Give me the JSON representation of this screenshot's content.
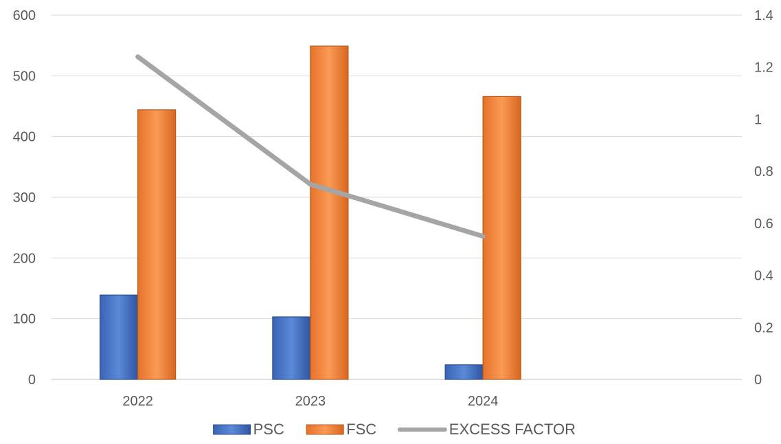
{
  "chart_data": {
    "type": "bar",
    "categories": [
      "2022",
      "2023",
      "2024"
    ],
    "x_slots": 4,
    "series": [
      {
        "name": "PSC",
        "kind": "bar",
        "axis": "left",
        "values": [
          139,
          103,
          24
        ],
        "color": "#4472C4"
      },
      {
        "name": "FSC",
        "kind": "bar",
        "axis": "left",
        "values": [
          444,
          549,
          466
        ],
        "color": "#ED7D31"
      },
      {
        "name": "EXCESS FACTOR",
        "kind": "line",
        "axis": "right",
        "values": [
          1.24,
          0.75,
          0.55
        ],
        "color": "#A5A5A5"
      }
    ],
    "y_left": {
      "min": 0,
      "max": 600,
      "step": 100,
      "ticks": [
        "0",
        "100",
        "200",
        "300",
        "400",
        "500",
        "600"
      ]
    },
    "y_right": {
      "min": 0,
      "max": 1.4,
      "step": 0.2,
      "ticks": [
        "0",
        "0.2",
        "0.4",
        "0.6",
        "0.8",
        "1",
        "1.2",
        "1.4"
      ]
    },
    "grid": true,
    "legend_position": "bottom"
  }
}
